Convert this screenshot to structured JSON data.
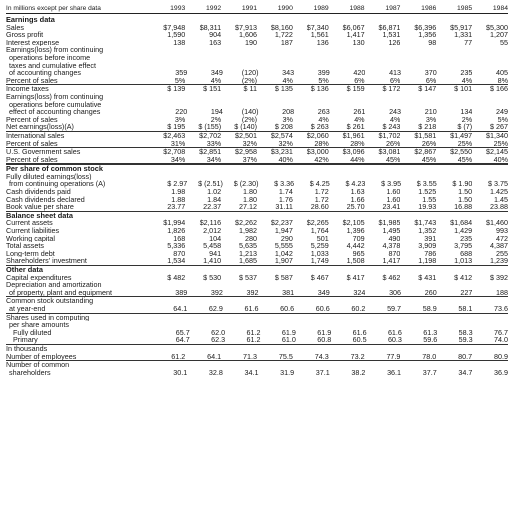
{
  "header": {
    "label": "In millions except per share data",
    "years": [
      "1993",
      "1992",
      "1991",
      "1990",
      "1989",
      "1988",
      "1987",
      "1986",
      "1985",
      "1984"
    ]
  },
  "rows": [
    {
      "label": "Earnings data",
      "type": "section",
      "values": []
    },
    {
      "label": "Sales",
      "values": [
        "$7,948",
        "$8,311",
        "$7,913",
        "$8,160",
        "$7,340",
        "$6,067",
        "$6,871",
        "$6,396",
        "$5,917",
        "$5,300"
      ]
    },
    {
      "label": "Gross profit",
      "values": [
        "1,590",
        "904",
        "1,606",
        "1,722",
        "1,561",
        "1,417",
        "1,531",
        "1,356",
        "1,331",
        "1,207"
      ]
    },
    {
      "label": "Interest expense",
      "values": [
        "138",
        "163",
        "190",
        "187",
        "136",
        "130",
        "126",
        "98",
        "77",
        "55"
      ]
    },
    {
      "label": "Earnings(loss) from continuing",
      "values": []
    },
    {
      "label": "operations before income",
      "type": "cont",
      "values": []
    },
    {
      "label": "taxes and cumulative effect",
      "type": "cont",
      "values": []
    },
    {
      "label": "of accounting changes",
      "type": "cont",
      "values": [
        "359",
        "349",
        "(120)",
        "343",
        "399",
        "420",
        "413",
        "370",
        "235",
        "405"
      ]
    },
    {
      "label": "Percent of sales",
      "values": [
        "5%",
        "4%",
        "(2%)",
        "4%",
        "5%",
        "6%",
        "6%",
        "6%",
        "4%",
        "8%"
      ],
      "rule": "single"
    },
    {
      "label": "Income taxes",
      "values": [
        "$ 139",
        "$ 151",
        "$ 11",
        "$ 135",
        "$ 136",
        "$ 159",
        "$ 172",
        "$ 147",
        "$ 101",
        "$ 166"
      ]
    },
    {
      "label": "Earnings(loss) from continuing",
      "values": []
    },
    {
      "label": "operations before cumulative",
      "type": "cont",
      "values": []
    },
    {
      "label": "effect of accounting changes",
      "type": "cont",
      "values": [
        "220",
        "194",
        "(140)",
        "208",
        "263",
        "261",
        "243",
        "210",
        "134",
        "249"
      ]
    },
    {
      "label": "Percent of sales",
      "values": [
        "3%",
        "2%",
        "(2%)",
        "3%",
        "4%",
        "4%",
        "4%",
        "3%",
        "2%",
        "5%"
      ]
    },
    {
      "label": "Net earnings(loss)(A)",
      "values": [
        "$ 195",
        "$ (155)",
        "$ (140)",
        "$ 208",
        "$ 263",
        "$ 261",
        "$ 243",
        "$ 218",
        "$ (7)",
        "$ 267"
      ],
      "rule": "single"
    },
    {
      "label": "International sales",
      "values": [
        "$2,463",
        "$2,702",
        "$2,501",
        "$2,574",
        "$2,060",
        "$1,961",
        "$1,702",
        "$1,581",
        "$1,497",
        "$1,340"
      ]
    },
    {
      "label": "Percent of sales",
      "values": [
        "31%",
        "33%",
        "32%",
        "32%",
        "28%",
        "28%",
        "26%",
        "26%",
        "25%",
        "25%"
      ],
      "rule": "single"
    },
    {
      "label": "U.S. Government sales",
      "values": [
        "$2,708",
        "$2,851",
        "$2,958",
        "$3,231",
        "$3,000",
        "$3,096",
        "$3,081",
        "$2,867",
        "$2,550",
        "$2,145"
      ]
    },
    {
      "label": "Percent of sales",
      "values": [
        "34%",
        "34%",
        "37%",
        "40%",
        "42%",
        "44%",
        "45%",
        "45%",
        "45%",
        "40%"
      ],
      "rule": "double"
    },
    {
      "label": "Per share of common stock",
      "type": "section",
      "values": []
    },
    {
      "label": "Fully diluted earnings(loss)",
      "values": []
    },
    {
      "label": "from continuing operations (A)",
      "type": "cont",
      "values": [
        "$ 2.97",
        "$ (2.51)",
        "$ (2.30)",
        "$ 3.36",
        "$ 4.25",
        "$ 4.23",
        "$ 3.95",
        "$ 3.55",
        "$ 1.90",
        "$ 3.75"
      ]
    },
    {
      "label": "Cash dividends paid",
      "values": [
        "1.98",
        "1.02",
        "1.80",
        "1.74",
        "1.72",
        "1.63",
        "1.60",
        "1.525",
        "1.50",
        "1.425"
      ]
    },
    {
      "label": "Cash dividends declared",
      "values": [
        "1.88",
        "1.84",
        "1.80",
        "1.76",
        "1.72",
        "1.66",
        "1.60",
        "1.55",
        "1.50",
        "1.45"
      ]
    },
    {
      "label": "Book value per share",
      "values": [
        "23.77",
        "22.37",
        "27.12",
        "31.11",
        "28.60",
        "25.70",
        "23.41",
        "19.93",
        "16.88",
        "23.88"
      ],
      "rule": "single"
    },
    {
      "label": "Balance sheet data",
      "type": "section",
      "values": []
    },
    {
      "label": "Current assets",
      "values": [
        "$1,994",
        "$2,116",
        "$2,262",
        "$2,237",
        "$2,265",
        "$2,105",
        "$1,985",
        "$1,743",
        "$1,684",
        "$1,460"
      ]
    },
    {
      "label": "Current liabilities",
      "values": [
        "1,826",
        "2,012",
        "1,982",
        "1,947",
        "1,764",
        "1,396",
        "1,495",
        "1,352",
        "1,429",
        "993"
      ]
    },
    {
      "label": "Working capital",
      "values": [
        "168",
        "104",
        "280",
        "290",
        "501",
        "709",
        "490",
        "391",
        "235",
        "472"
      ]
    },
    {
      "label": "Total assets",
      "values": [
        "5,336",
        "5,458",
        "5,635",
        "5,555",
        "5,259",
        "4,442",
        "4,378",
        "3,909",
        "3,795",
        "4,387"
      ]
    },
    {
      "label": "Long-term debt",
      "values": [
        "870",
        "941",
        "1,213",
        "1,042",
        "1,033",
        "965",
        "870",
        "786",
        "688",
        "255"
      ]
    },
    {
      "label": "Shareholders' investment",
      "values": [
        "1,534",
        "1,410",
        "1,685",
        "1,907",
        "1,749",
        "1,508",
        "1,417",
        "1,198",
        "1,013",
        "1,239"
      ],
      "rule": "single"
    },
    {
      "label": "Other data",
      "type": "section",
      "values": []
    },
    {
      "label": "Capital expenditures",
      "values": [
        "$ 482",
        "$ 530",
        "$ 537",
        "$ 587",
        "$ 467",
        "$ 417",
        "$ 462",
        "$ 431",
        "$ 412",
        "$ 392"
      ]
    },
    {
      "label": "Depreciation and amortization",
      "values": []
    },
    {
      "label": "of property, plant and equipment",
      "type": "cont",
      "values": [
        "389",
        "392",
        "392",
        "381",
        "349",
        "324",
        "306",
        "260",
        "227",
        "188"
      ],
      "rule": "single"
    },
    {
      "label": "Common stock outstanding",
      "values": []
    },
    {
      "label": "at year-end",
      "type": "cont",
      "values": [
        "64.1",
        "62.9",
        "61.6",
        "60.6",
        "60.6",
        "60.2",
        "59.7",
        "58.9",
        "58.1",
        "73.6"
      ],
      "rule": "single"
    },
    {
      "label": "Shares used in computing",
      "values": []
    },
    {
      "label": "per share amounts",
      "type": "cont",
      "values": []
    },
    {
      "label": "Fully diluted",
      "type": "indent",
      "values": [
        "65.7",
        "62.0",
        "61.2",
        "61.9",
        "61.9",
        "61.6",
        "61.6",
        "61.3",
        "58.3",
        "76.7"
      ]
    },
    {
      "label": "Primary",
      "type": "indent",
      "values": [
        "64.7",
        "62.3",
        "61.2",
        "61.0",
        "60.8",
        "60.5",
        "60.3",
        "59.6",
        "59.3",
        "74.0"
      ],
      "rule": "single"
    },
    {
      "label": "In thousands",
      "values": []
    },
    {
      "label": "Number of employees",
      "values": [
        "61.2",
        "64.1",
        "71.3",
        "75.5",
        "74.3",
        "73.2",
        "77.9",
        "78.0",
        "80.7",
        "80.9"
      ],
      "rule": "single"
    },
    {
      "label": "Number of common",
      "values": []
    },
    {
      "label": "shareholders",
      "type": "cont",
      "values": [
        "30.1",
        "32.8",
        "34.1",
        "31.9",
        "37.1",
        "38.2",
        "36.1",
        "37.7",
        "34.7",
        "36.9"
      ]
    }
  ]
}
